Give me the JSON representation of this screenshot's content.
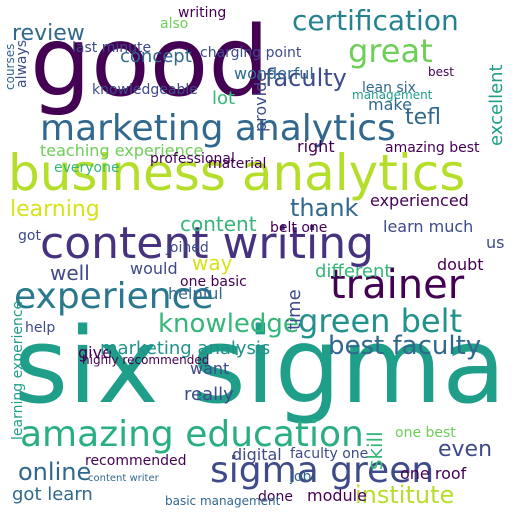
{
  "words": [
    "good",
    "six sigma",
    "business analytics",
    "content writing",
    "marketing analytics",
    "experience",
    "trainer",
    "green belt",
    "amazing education",
    "sigma green",
    "certification",
    "great",
    "faculty",
    "tefl",
    "review",
    "knowledge",
    "best faculty",
    "online",
    "institute",
    "thank",
    "learning",
    "got learn",
    "recommended",
    "digital",
    "skill",
    "even",
    "one roof",
    "content",
    "teaching experience",
    "concept",
    "writing",
    "also",
    "charging point",
    "lean six",
    "wonderful",
    "knowledgeable",
    "lot",
    "make",
    "management",
    "best",
    "excellent",
    "courses",
    "always",
    "provide",
    "right",
    "amazing best",
    "professional",
    "experienced",
    "learn much",
    "joined",
    "well",
    "way",
    "would",
    "different",
    "doubt",
    "helpful",
    "time",
    "give",
    "marketing analysis",
    "help",
    "want",
    "really",
    "us",
    "job",
    "module",
    "done",
    "basic management",
    "content writer",
    "last minute",
    "belt one",
    "one best",
    "faculty one",
    "got",
    "material",
    "everyone",
    "learning experience",
    "one basic",
    "highly recommended"
  ]
}
